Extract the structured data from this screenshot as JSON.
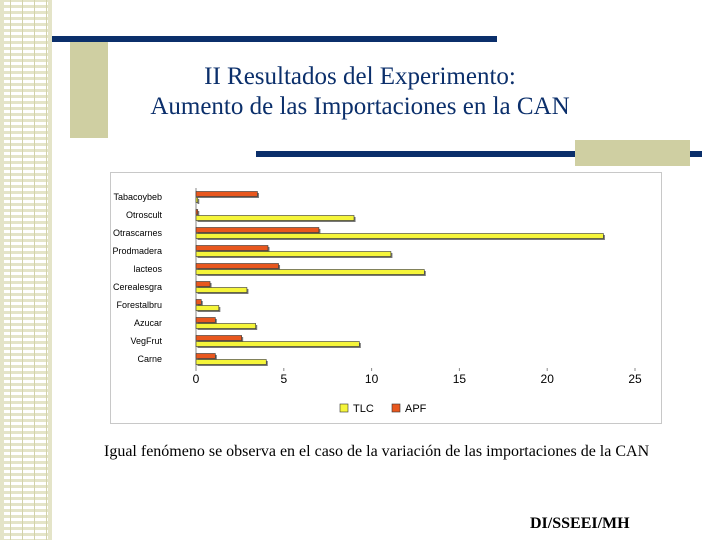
{
  "slide": {
    "title_line1": "II Resultados del Experimento:",
    "title_line2": "Aumento de las Importaciones en la CAN",
    "caption": "Igual fenómeno se observa en el caso de la variación de las importaciones de la CAN",
    "footer": "DI/SSEEI/MH"
  },
  "colors": {
    "navy": "#0b2f6b",
    "tan": "#cfcfa2",
    "tlc": "#f5f53a",
    "apf": "#e8571e"
  },
  "chart_data": {
    "type": "bar",
    "orientation": "horizontal",
    "categories": [
      "Tabacoybeb",
      "Otroscult",
      "Otrascarnes",
      "Prodmadera",
      "lacteos",
      "Cerealesgra",
      "Forestalbru",
      "Azucar",
      "VegFrut",
      "Carne"
    ],
    "series": [
      {
        "name": "TLC",
        "values": [
          0.1,
          9.0,
          23.2,
          11.1,
          13.0,
          2.9,
          1.3,
          3.4,
          9.3,
          4.0
        ]
      },
      {
        "name": "APF",
        "values": [
          3.5,
          0.1,
          7.0,
          4.1,
          4.7,
          0.8,
          0.3,
          1.1,
          2.6,
          1.1
        ]
      }
    ],
    "xlim": [
      0,
      25
    ],
    "xticks": [
      0,
      5,
      10,
      15,
      20,
      25
    ],
    "legend_position": "bottom",
    "grid": false
  }
}
